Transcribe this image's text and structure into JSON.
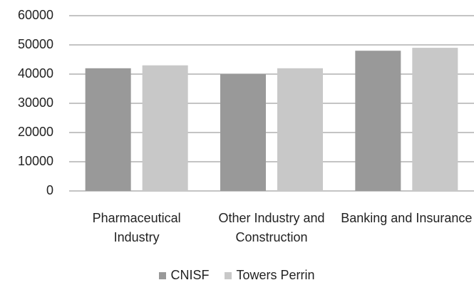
{
  "chart_data": {
    "type": "bar",
    "categories": [
      "Pharmaceutical Industry",
      "Other Industry and Construction",
      "Banking and Insurance"
    ],
    "series": [
      {
        "name": "CNISF",
        "color": "#999999",
        "values": [
          42000,
          40000,
          48000
        ]
      },
      {
        "name": "Towers Perrin",
        "color": "#c8c8c8",
        "values": [
          43000,
          42000,
          49000
        ]
      }
    ],
    "ylim": [
      0,
      60000
    ],
    "yticks": [
      0,
      10000,
      20000,
      30000,
      40000,
      50000,
      60000
    ],
    "grid": true
  }
}
